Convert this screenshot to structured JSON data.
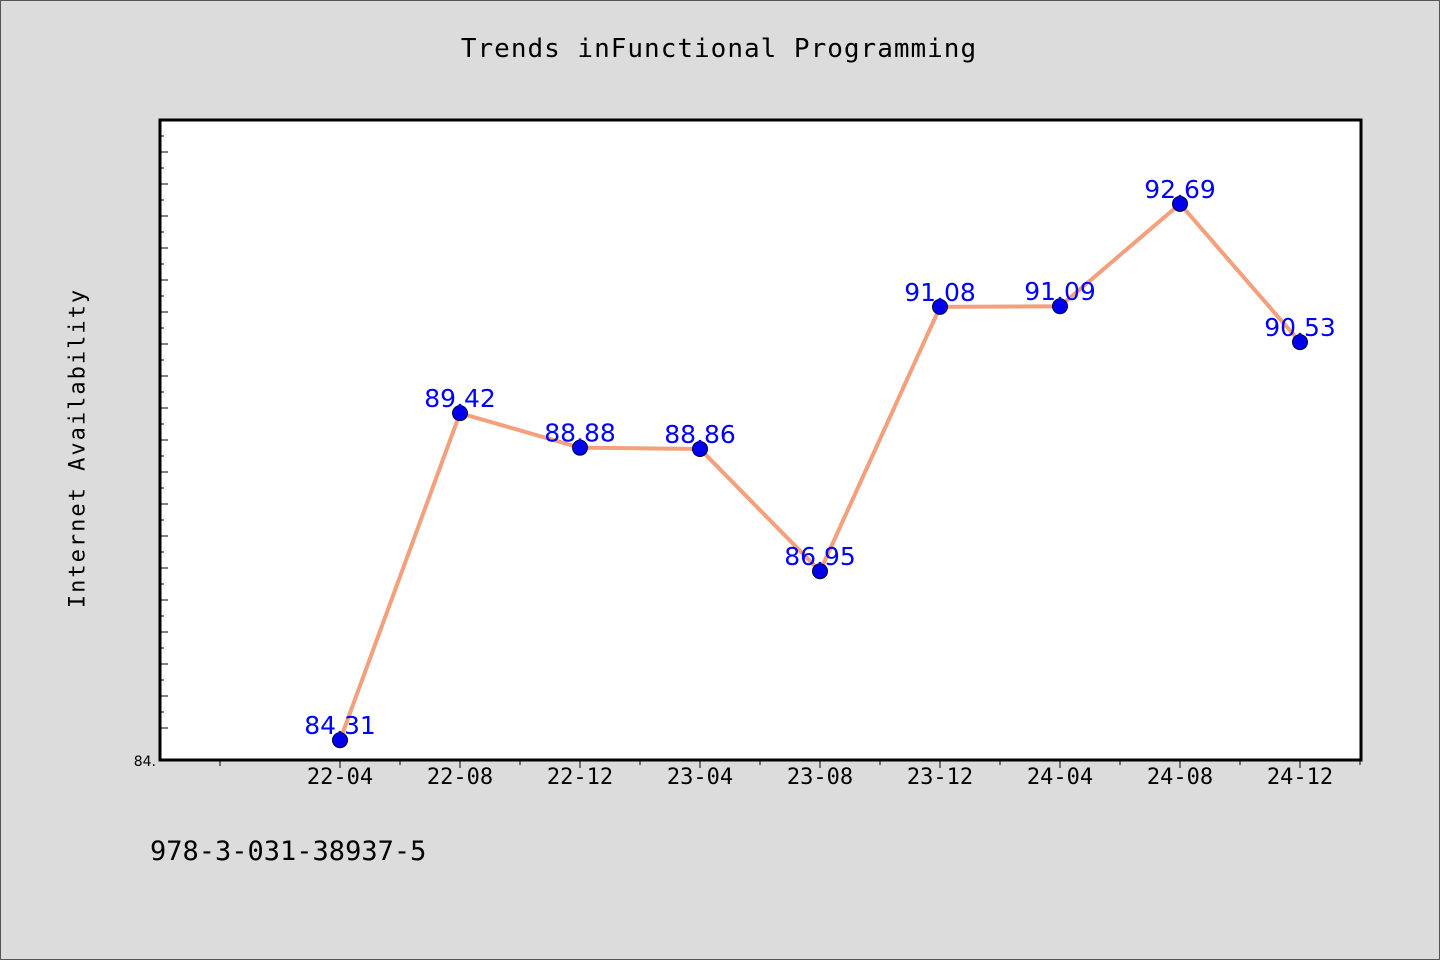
{
  "chart_data": {
    "type": "line",
    "title": "Trends inFunctional Programming",
    "xlabel": "",
    "ylabel": "Internet Availability",
    "categories": [
      "22-04",
      "22-08",
      "22-12",
      "23-04",
      "23-08",
      "23-12",
      "24-04",
      "24-08",
      "24-12"
    ],
    "series": [
      {
        "values": [
          84.31,
          89.42,
          88.88,
          88.86,
          86.95,
          91.08,
          91.09,
          92.69,
          90.53
        ],
        "value_labels": [
          "84.31",
          "89.42",
          "88.88",
          "88.86",
          "86.95",
          "91.08",
          "91.09",
          "92.69",
          "90.53"
        ]
      }
    ],
    "y_min_label": "84.",
    "ylim": [
      84.0,
      94.0
    ],
    "grid": false,
    "legend": "none",
    "colors": {
      "line": "#f4a07c",
      "marker": "#0000ee",
      "label": "#0000ff",
      "background": "#dcdcdc",
      "plot_background": "#ffffff"
    }
  },
  "footer": {
    "id": "978-3-031-38937-5"
  }
}
